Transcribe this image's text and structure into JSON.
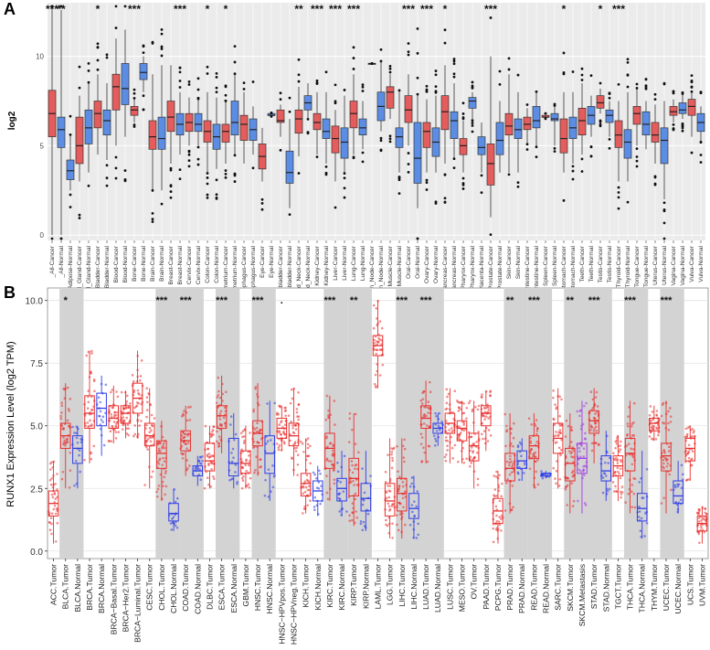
{
  "panels": {
    "a": {
      "letter": "A",
      "ylabel": "log2"
    },
    "b": {
      "letter": "B",
      "ylabel": "RUNX1 Expression Level (log2 TPM)"
    }
  },
  "chart_data": [
    {
      "type": "box",
      "ylabel": "log2",
      "ylim": [
        -0.3,
        13
      ],
      "yticks": [
        0,
        5,
        10
      ],
      "grid": true,
      "background": "#ebebeb",
      "colors": {
        "cancer": "#e55c5c",
        "normal": "#5c8de5"
      },
      "categories": [
        "_All-Cancer",
        "_All-Normal",
        "Adipose-Normal",
        "Adrenal_Gland-Cancer",
        "Adrenal_Gland-Normal",
        "Bladder-Cancer",
        "Bladder-Normal",
        "Blood-Cancer",
        "Blood-Normal",
        "Bone-Cancer",
        "Bone-Normal",
        "Brain-Cancer",
        "Brain-Normal",
        "Breast-Cancer",
        "Breast-Normal",
        "Cervix-Cancer",
        "Cervix-Normal",
        "Colon-Cancer",
        "Colon-Normal",
        "Endometrium-Cancer",
        "Endometrium-Normal",
        "Esophagus-Cancer",
        "Esophagus-Normal",
        "Eye-Cancer",
        "Eye-Normal",
        "Gallbladder-Cancer",
        "Gallbladder-Normal",
        "Head_and_Neck-Cancer",
        "Head_and_Neck-Normal",
        "Kidney-Cancer",
        "Kidney-Normal",
        "Liver-Cancer",
        "Liver-Normal",
        "Lung-Cancer",
        "Lung-Normal",
        "Lymph_Node-Cancer",
        "Lymph_Node-Normal",
        "Muscle-Cancer",
        "Muscle-Normal",
        "Oral-Cancer",
        "Oral-Normal",
        "Ovary-Cancer",
        "Ovary-Normal",
        "Pancreas-Cancer",
        "Pancreas-Normal",
        "Pharynx-Cancer",
        "Pharynx-Normal",
        "Placenta-Normal",
        "Prostate-Cancer",
        "Prostate-Normal",
        "Skin-Cancer",
        "Skin-Normal",
        "Small_Intestine-Cancer",
        "Small_Intestine-Normal",
        "Spleen-Cancer",
        "Spleen-Normal",
        "Stomach-Cancer",
        "Stomach-Normal",
        "Teeth-Cancer",
        "Teeth-Normal",
        "Testis-Cancer",
        "Testis-Normal",
        "Thyroid-Cancer",
        "Thyroid-Normal",
        "Tongue-Cancer",
        "Tongue-Normal",
        "Uterus-Cancer",
        "Uterus-Normal",
        "Vagina-Cancer",
        "Vagina-Normal",
        "Vulva-Cancer",
        "Vulva-Normal"
      ],
      "boxes": [
        [
          0,
          5.5,
          6.8,
          8.1,
          12.8
        ],
        [
          0,
          4.9,
          5.9,
          6.6,
          12.6
        ],
        [
          2.5,
          3.1,
          3.6,
          4.2,
          5.6
        ],
        [
          3,
          4,
          5,
          6.6,
          7.8
        ],
        [
          3.5,
          5.1,
          6,
          7,
          8.5
        ],
        [
          4.5,
          6,
          6.8,
          7.5,
          9
        ],
        [
          4.2,
          5.6,
          6.4,
          7,
          8.5
        ],
        [
          5,
          7,
          8.3,
          9,
          11
        ],
        [
          5.5,
          7.3,
          8.2,
          9.6,
          11.5
        ],
        [
          6.3,
          6.7,
          7,
          7.2,
          7.6
        ],
        [
          8,
          8.7,
          9.1,
          9.6,
          10
        ],
        [
          2.5,
          4.8,
          5.5,
          6.4,
          9
        ],
        [
          2.5,
          4.8,
          5.4,
          6.6,
          9.5
        ],
        [
          4,
          5.8,
          6.6,
          7.5,
          9.5
        ],
        [
          4.5,
          5.6,
          6.2,
          6.8,
          8
        ],
        [
          5,
          5.8,
          6.3,
          6.8,
          7.7
        ],
        [
          5,
          5.8,
          6.2,
          6.8,
          7.6
        ],
        [
          3.5,
          5.2,
          5.8,
          6.4,
          8
        ],
        [
          3.7,
          4.8,
          5.5,
          6.2,
          7.7
        ],
        [
          4,
          5.2,
          5.8,
          6.2,
          7.5
        ],
        [
          4.5,
          5.6,
          6.3,
          7.5,
          9
        ],
        [
          4,
          5.3,
          6.2,
          6.7,
          8
        ],
        [
          4.5,
          5.3,
          5.9,
          6.5,
          7.2
        ],
        [
          3,
          3.7,
          4.4,
          5.1,
          6
        ],
        [
          6.7,
          6.7,
          6.7,
          6.8,
          6.8
        ],
        [
          5.5,
          6.3,
          6.4,
          7,
          7.3
        ],
        [
          1.5,
          2.9,
          3.5,
          4.7,
          6.5
        ],
        [
          4.4,
          5.7,
          6.5,
          7,
          8.3
        ],
        [
          6.5,
          7,
          7.4,
          7.8,
          8.5
        ],
        [
          4.5,
          5.9,
          6.3,
          6.8,
          8
        ],
        [
          4,
          5.4,
          5.8,
          6.5,
          8
        ],
        [
          3,
          4.6,
          5.4,
          6.1,
          7
        ],
        [
          3.5,
          4.3,
          5.2,
          6,
          7.8
        ],
        [
          4.5,
          6,
          6.8,
          7.5,
          9
        ],
        [
          4.8,
          5.6,
          6,
          6.5,
          7.5
        ],
        [
          9.6,
          9.6,
          9.6,
          9.6,
          9.6
        ],
        [
          5.8,
          6.4,
          7.2,
          8,
          9.7
        ],
        [
          6.5,
          7.1,
          8,
          8.3,
          9
        ],
        [
          3.5,
          4.9,
          5.5,
          6,
          8
        ],
        [
          5,
          6.3,
          7,
          7.8,
          9
        ],
        [
          1.5,
          2.9,
          4.3,
          6.3,
          7.8
        ],
        [
          3.5,
          4.9,
          5.8,
          6.3,
          7.6
        ],
        [
          3.5,
          4.4,
          5.2,
          6,
          7.8
        ],
        [
          4,
          5.9,
          6.9,
          7.8,
          9.5
        ],
        [
          4.3,
          5.4,
          6.4,
          6.9,
          8.5
        ],
        [
          3.5,
          4.5,
          5,
          5.4,
          6.4
        ],
        [
          6.5,
          7.1,
          7.5,
          7.7,
          8
        ],
        [
          3.5,
          4.5,
          4.9,
          5.5,
          6.3
        ],
        [
          1,
          2.8,
          4,
          5.1,
          10
        ],
        [
          3.5,
          4.5,
          5.3,
          6.3,
          7.5
        ],
        [
          3.5,
          5.6,
          6.1,
          6.8,
          9
        ],
        [
          3.5,
          5.4,
          5.9,
          6.5,
          8
        ],
        [
          5.1,
          5.9,
          6.2,
          6.6,
          7.1
        ],
        [
          5,
          6,
          6.4,
          7.2,
          8
        ],
        [
          6.6,
          6.6,
          6.6,
          6.7,
          6.7
        ],
        [
          5,
          6.4,
          6.5,
          6.8,
          7.2
        ],
        [
          3.5,
          4.6,
          5.4,
          6.5,
          8
        ],
        [
          4,
          5.4,
          6,
          6.6,
          8
        ],
        [
          4.5,
          5.6,
          6.4,
          7.1,
          8.5
        ],
        [
          5.5,
          6.2,
          6.7,
          7.2,
          7.8
        ],
        [
          6.8,
          7.1,
          7.4,
          7.8,
          8.2
        ],
        [
          5.5,
          6.3,
          6.7,
          7,
          7.5
        ],
        [
          3,
          4.9,
          5.6,
          6.4,
          7.5
        ],
        [
          3,
          4.3,
          5.2,
          5.9,
          8
        ],
        [
          5,
          6.2,
          6.8,
          7.2,
          8.2
        ],
        [
          4.8,
          5.6,
          6.2,
          6.9,
          7.5
        ],
        [
          4,
          5.2,
          5.6,
          6.3,
          7.3
        ],
        [
          2,
          4,
          5.3,
          6,
          7.5
        ],
        [
          6.3,
          6.7,
          6.9,
          7.2,
          7.6
        ],
        [
          6.5,
          6.8,
          7,
          7.4,
          7.9
        ],
        [
          5.5,
          6.7,
          7.2,
          7.6,
          8
        ],
        [
          5.2,
          5.8,
          6.3,
          6.8,
          7.2
        ]
      ],
      "significance": [
        "***",
        "**",
        "",
        "",
        "",
        "*",
        "",
        "",
        "",
        "***",
        "",
        "",
        "",
        "",
        "***",
        "",
        "",
        "*",
        "",
        "*",
        "",
        "",
        "",
        "",
        "",
        "",
        "",
        "**",
        "",
        "***",
        "",
        "***",
        "",
        "***",
        "",
        "",
        "",
        "",
        "",
        "***",
        "",
        "***",
        "",
        "*",
        "",
        "",
        "",
        "",
        "***",
        "",
        "",
        "",
        "",
        "",
        "",
        "",
        "*",
        "",
        "",
        "",
        "*",
        "",
        "***",
        "",
        "",
        "",
        "",
        "",
        "",
        "",
        "",
        ""
      ]
    },
    {
      "type": "box",
      "ylabel": "RUNX1 Expression Level (log2 TPM)",
      "ylim": [
        -0.3,
        10.5
      ],
      "yticks": [
        0.0,
        2.5,
        5.0,
        7.5,
        10.0
      ],
      "ytick_labels": [
        "0.0",
        "2.5",
        "5.0",
        "7.5",
        "10.0"
      ],
      "grid": true,
      "colors": {
        "Tumor": "#e8302e",
        "Normal": "#2e3de8",
        "Metastasis": "#a13ae0"
      },
      "categories": [
        "ACC.Tumor",
        "BLCA.Tumor",
        "BLCA.Normal",
        "BRCA.Tumor",
        "BRCA.Normal",
        "BRCA−Basal.Tumor",
        "BRCA−Her2.Tumor",
        "BRCA−Luminal.Tumor",
        "CESC.Tumor",
        "CHOL.Tumor",
        "CHOL.Normal",
        "COAD.Tumor",
        "COAD.Normal",
        "DLBC.Tumor",
        "ESCA.Tumor",
        "ESCA.Normal",
        "GBM.Tumor",
        "HNSC.Tumor",
        "HNSC.Normal",
        "HNSC−HPVpos.Tumor",
        "HNSC−HPVneg.Tumor",
        "KICH.Tumor",
        "KICH.Normal",
        "KIRC.Tumor",
        "KIRC.Normal",
        "KIRP.Tumor",
        "KIRP.Normal",
        "LAML.Tumor",
        "LGG.Tumor",
        "LIHC.Tumor",
        "LIHC.Normal",
        "LUAD.Tumor",
        "LUAD.Normal",
        "LUSC.Tumor",
        "MESO.Tumor",
        "OV.Tumor",
        "PAAD.Tumor",
        "PCPG.Tumor",
        "PRAD.Tumor",
        "PRAD.Normal",
        "READ.Tumor",
        "READ.Normal",
        "SARC.Tumor",
        "SKCM.Tumor",
        "SKCM.Metastasis",
        "STAD.Tumor",
        "STAD.Normal",
        "TGCT.Tumor",
        "THCA.Tumor",
        "THCA.Normal",
        "THYM.Tumor",
        "UCEC.Tumor",
        "UCEC.Normal",
        "UCS.Tumor",
        "UVM.Tumor"
      ],
      "boxes": [
        [
          0.3,
          1.4,
          1.9,
          2.4,
          3.6
        ],
        [
          2.5,
          4.1,
          4.6,
          5.1,
          6.7
        ],
        [
          2.5,
          3.5,
          4.1,
          4.6,
          5
        ],
        [
          3.5,
          4.9,
          5.5,
          6.2,
          8
        ],
        [
          3.8,
          5,
          5.7,
          6.3,
          7
        ],
        [
          4.3,
          4.9,
          5.3,
          5.8,
          6.6
        ],
        [
          4.5,
          5.1,
          5.5,
          5.8,
          6.4
        ],
        [
          4.5,
          5.5,
          6.1,
          6.7,
          8
        ],
        [
          2.5,
          4.2,
          4.6,
          5.1,
          6.5
        ],
        [
          2,
          3.3,
          3.9,
          4.4,
          5.2
        ],
        [
          0.8,
          1.2,
          1.5,
          1.9,
          2.5
        ],
        [
          3,
          4,
          4.4,
          4.8,
          5.8
        ],
        [
          2.6,
          3,
          3.2,
          3.4,
          3.8
        ],
        [
          2.5,
          3.2,
          3.6,
          4.3,
          5
        ],
        [
          3.9,
          4.9,
          5.4,
          5.8,
          7
        ],
        [
          2.5,
          3,
          3.5,
          4.5,
          5.5
        ],
        [
          2.5,
          3.1,
          3.5,
          4,
          5
        ],
        [
          3,
          4.2,
          4.7,
          5.2,
          6.7
        ],
        [
          2,
          3.1,
          3.9,
          4.6,
          6
        ],
        [
          4,
          4.5,
          4.9,
          5.3,
          5.8
        ],
        [
          3,
          4.2,
          4.6,
          5.1,
          6.5
        ],
        [
          1.5,
          2.2,
          2.7,
          3.1,
          4.5
        ],
        [
          1.4,
          2,
          2.4,
          2.8,
          3.4
        ],
        [
          2,
          3.3,
          4.1,
          4.7,
          6.2
        ],
        [
          1.4,
          2,
          2.5,
          2.9,
          4
        ],
        [
          1,
          2.2,
          2.9,
          3.7,
          5.5
        ],
        [
          0.8,
          1.6,
          2.1,
          2.7,
          4
        ],
        [
          6.5,
          7.8,
          8.2,
          8.6,
          10
        ],
        [
          0.5,
          1.4,
          2,
          2.7,
          4.5
        ],
        [
          0.5,
          1.6,
          2.3,
          2.9,
          4.5
        ],
        [
          0.5,
          1.3,
          1.7,
          2.3,
          3
        ],
        [
          3.5,
          4.9,
          5.3,
          5.8,
          6.8
        ],
        [
          4.2,
          4.7,
          4.9,
          5.1,
          5.5
        ],
        [
          3.5,
          4.7,
          5.1,
          5.5,
          6.5
        ],
        [
          3.5,
          4.4,
          4.9,
          5.2,
          6
        ],
        [
          2.5,
          3.6,
          4.2,
          4.7,
          6
        ],
        [
          4,
          5,
          5.5,
          5.8,
          6.4
        ],
        [
          0.3,
          1.1,
          1.6,
          2.1,
          3.2
        ],
        [
          1.5,
          2.8,
          3.3,
          3.9,
          5.5
        ],
        [
          2.8,
          3.3,
          3.6,
          4,
          4.5
        ],
        [
          2.5,
          3.7,
          4.2,
          4.6,
          5.5
        ],
        [
          2.9,
          3,
          3.1,
          3.1,
          3.2
        ],
        [
          2.5,
          3.9,
          4.5,
          5.1,
          6.5
        ],
        [
          1.5,
          2.8,
          3.5,
          4.1,
          5.5
        ],
        [
          1.5,
          3.1,
          3.7,
          4.3,
          6
        ],
        [
          3.5,
          4.7,
          5.2,
          5.6,
          6.5
        ],
        [
          2,
          2.8,
          3.2,
          3.8,
          4.8
        ],
        [
          2,
          3,
          3.4,
          3.8,
          4.6
        ],
        [
          1.5,
          3.2,
          3.9,
          4.5,
          6
        ],
        [
          0.5,
          1.2,
          1.7,
          2.3,
          4
        ],
        [
          4.4,
          4.8,
          5.1,
          5.3,
          5.8
        ],
        [
          1.5,
          3.2,
          3.8,
          4.3,
          6
        ],
        [
          1.5,
          1.9,
          2.2,
          2.8,
          3.6
        ],
        [
          2.8,
          3.6,
          4.1,
          4.5,
          5
        ],
        [
          0.3,
          0.8,
          1.1,
          1.4,
          1.8
        ]
      ],
      "significance": [
        "",
        "*",
        "",
        "",
        "",
        "",
        "",
        "",
        "",
        "***",
        "",
        "***",
        "",
        "",
        "***",
        "",
        "",
        "***",
        "",
        ".",
        "",
        "",
        "",
        "***",
        "",
        "**",
        "",
        "",
        "",
        "***",
        "",
        "***",
        "",
        "",
        "",
        "",
        "",
        "",
        "**",
        "",
        "***",
        "",
        "",
        "**",
        "",
        "***",
        "",
        "",
        "***",
        "",
        "",
        "***",
        "",
        "",
        ""
      ]
    }
  ]
}
